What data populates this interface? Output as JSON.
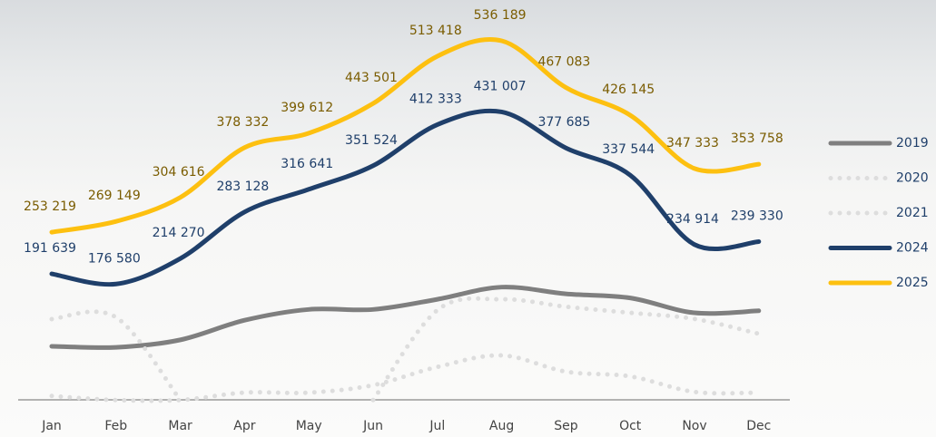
{
  "chart_data": {
    "type": "line",
    "categories": [
      "Jan",
      "Feb",
      "Mar",
      "Apr",
      "May",
      "Jun",
      "Jul",
      "Aug",
      "Sep",
      "Oct",
      "Nov",
      "Dec"
    ],
    "series": [
      {
        "name": "2019",
        "color": "#7f7f7f",
        "style": "solid",
        "values": [
          84500,
          83000,
          94000,
          123000,
          139000,
          139000,
          154000,
          172000,
          162000,
          156000,
          134000,
          137000
        ]
      },
      {
        "name": "2020",
        "color": "#dddddd",
        "style": "dotted",
        "values": [
          124700,
          127400,
          5000,
          null,
          null,
          5000,
          138000,
          154000,
          143000,
          134000,
          125000,
          103000
        ]
      },
      {
        "name": "2021",
        "color": "#dddddd",
        "style": "dotted",
        "values": [
          11000,
          5000,
          5000,
          16000,
          16000,
          27000,
          54000,
          71000,
          47000,
          40000,
          17000,
          16000
        ]
      },
      {
        "name": "2024",
        "color": "#1f3f6a",
        "label_color": "#1f3f6a",
        "style": "solid",
        "values": [
          191639,
          176580,
          214270,
          283128,
          316641,
          351524,
          412333,
          431007,
          377685,
          337544,
          234914,
          239330
        ],
        "value_labels": [
          "191 639",
          "176 580",
          "214 270",
          "283 128",
          "316 641",
          "351 524",
          "412 333",
          "431 007",
          "377 685",
          "337 544",
          "234 914",
          "239 330"
        ]
      },
      {
        "name": "2025",
        "color": "#fdc010",
        "label_color": "#7a5c00",
        "style": "solid",
        "values": [
          253219,
          269149,
          304616,
          378332,
          399612,
          443501,
          513418,
          536189,
          467083,
          426145,
          347333,
          353758
        ],
        "value_labels": [
          "253 219",
          "269 149",
          "304 616",
          "378 332",
          "399 612",
          "443 501",
          "513 418",
          "536 189",
          "467 083",
          "426 145",
          "347 333",
          "353 758"
        ]
      }
    ],
    "legend": "right"
  }
}
